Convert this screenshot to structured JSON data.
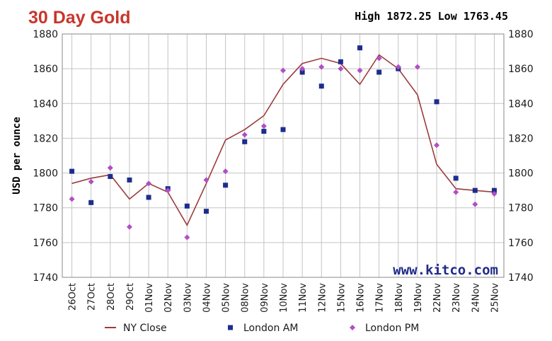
{
  "chart_data": {
    "type": "line",
    "title": "30 Day Gold",
    "high_low": "High 1872.25 Low 1763.45",
    "ylabel": "USD per ounce",
    "watermark": "www.kitco.com",
    "ylim": [
      1740,
      1880
    ],
    "yticks": [
      "1740",
      "1760",
      "1780",
      "1800",
      "1820",
      "1840",
      "1860",
      "1880"
    ],
    "categories": [
      "26Oct",
      "27Oct",
      "28Oct",
      "29Oct",
      "01Nov",
      "02Nov",
      "03Nov",
      "04Nov",
      "05Nov",
      "08Nov",
      "09Nov",
      "10Nov",
      "11Nov",
      "12Nov",
      "15Nov",
      "16Nov",
      "17Nov",
      "18Nov",
      "19Nov",
      "22Nov",
      "23Nov",
      "24Nov",
      "25Nov"
    ],
    "series": [
      {
        "name": "NY Close",
        "style": "line",
        "color": "#9c3b3b",
        "values": [
          1794,
          1797,
          1799,
          1785,
          1794,
          1789,
          1770,
          1794,
          1819,
          1825,
          1833,
          1851,
          1863,
          1866,
          1863,
          1851,
          1868,
          1860,
          1845,
          1805,
          1791,
          1790,
          1789
        ]
      },
      {
        "name": "London AM",
        "style": "square",
        "color": "#1d2d8c",
        "values": [
          1801,
          1783,
          1798,
          1796,
          1786,
          1791,
          1781,
          1778,
          1793,
          1818,
          1824,
          1825,
          1858,
          1850,
          1864,
          1872,
          1858,
          1860,
          null,
          1841,
          1797,
          1790,
          1790
        ]
      },
      {
        "name": "London PM",
        "style": "diamond",
        "color": "#b04fc4",
        "values": [
          1785,
          1795,
          1803,
          1769,
          1794,
          1790,
          1763,
          1796,
          1801,
          1822,
          1827,
          1859,
          1860,
          1861,
          1860,
          1859,
          1866,
          1861,
          1861,
          1816,
          1789,
          1782,
          1788
        ]
      }
    ],
    "grid": true,
    "legend_position": "bottom"
  }
}
